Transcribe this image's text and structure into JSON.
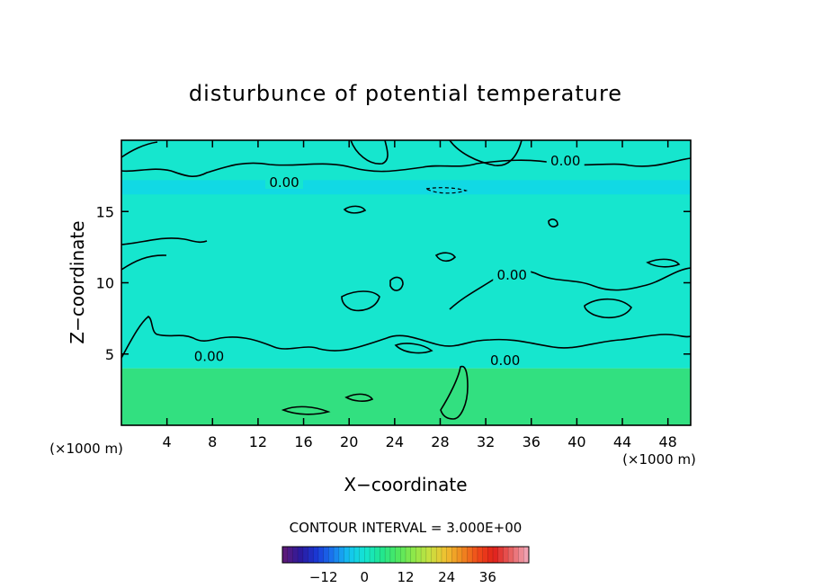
{
  "chart_data": {
    "type": "heatmap",
    "title": "disturbunce of potential temperature",
    "xlabel": "X−coordinate",
    "ylabel": "Z−coordinate",
    "x_unit": "(×1000 m)",
    "z_unit": "(×1000 m)",
    "x_ticks": [
      4,
      8,
      12,
      16,
      20,
      24,
      28,
      32,
      36,
      40,
      44,
      48
    ],
    "y_ticks": [
      5,
      10,
      15
    ],
    "xlim": [
      0,
      50
    ],
    "ylim": [
      0,
      20
    ],
    "contour_interval_label": "CONTOUR INTERVAL = 3.000E+00",
    "contour_interval": 3.0,
    "contour_labels": [
      {
        "text": "0.00",
        "x": 14.3,
        "z": 17.1
      },
      {
        "text": "0.00",
        "x": 39.0,
        "z": 18.6
      },
      {
        "text": "0.00",
        "x": 34.3,
        "z": 10.6
      },
      {
        "text": "0.00",
        "x": 7.7,
        "z": 4.9
      },
      {
        "text": "0.00",
        "x": 33.7,
        "z": 4.6
      }
    ],
    "fields": [
      {
        "name": "lower layer",
        "z_range": [
          0,
          4.0
        ],
        "value": 3,
        "color": "#32e080"
      },
      {
        "name": "upper layer",
        "z_range": [
          4.0,
          20
        ],
        "value": -1,
        "color": "#16e6ce"
      },
      {
        "name": "cool band",
        "z_range": [
          16.2,
          17.2
        ],
        "value": -3,
        "color": "#10d6ea"
      }
    ],
    "colorbar": {
      "range": [
        -24,
        48
      ],
      "ticks": [
        -12,
        0,
        12,
        24,
        36
      ],
      "tick_labels": [
        "−12",
        "0",
        "12",
        "24",
        "36"
      ],
      "colors": [
        "#5a1a7a",
        "#2a1aa0",
        "#1a3ad8",
        "#1a7af0",
        "#14c4f0",
        "#14e6d0",
        "#20e690",
        "#4ee860",
        "#8ee84a",
        "#c8e040",
        "#f0c030",
        "#f08a20",
        "#f04a1a",
        "#e0201a",
        "#e86060",
        "#f0a0b0"
      ]
    }
  }
}
